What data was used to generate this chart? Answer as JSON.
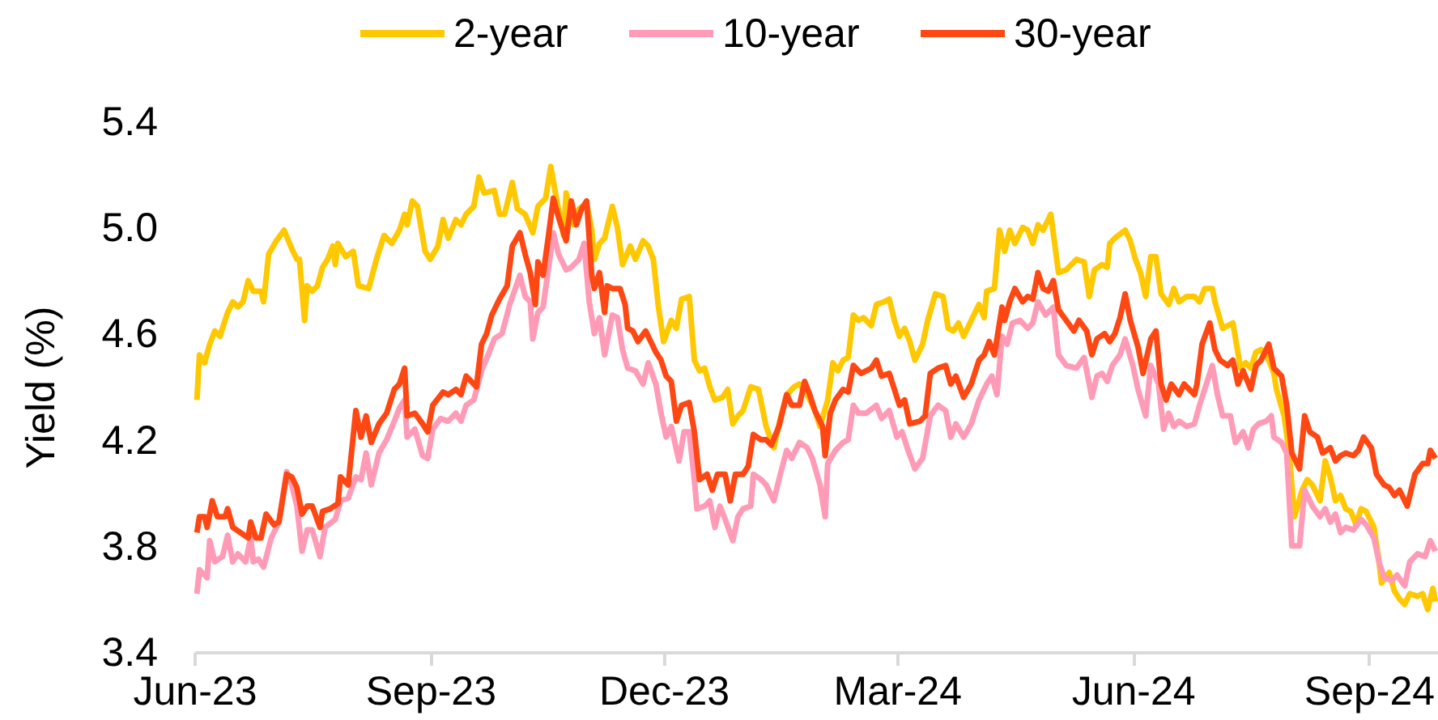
{
  "chart_data": {
    "type": "line",
    "ylabel": "Yield (%)",
    "legend": "top",
    "xlim": [
      "2023-06-01",
      "2024-09-28"
    ],
    "xticks": [
      {
        "value": "2023-06-01",
        "label": "Jun-23"
      },
      {
        "value": "2023-09-01",
        "label": "Sep-23"
      },
      {
        "value": "2023-12-01",
        "label": "Dec-23"
      },
      {
        "value": "2024-03-01",
        "label": "Mar-24"
      },
      {
        "value": "2024-06-01",
        "label": "Jun-24"
      },
      {
        "value": "2024-09-01",
        "label": "Sep-24"
      }
    ],
    "ylim": [
      3.4,
      5.4
    ],
    "yticks": [
      3.4,
      3.8,
      4.2,
      4.6,
      {
        "value": 5.0,
        "label": "5.0"
      },
      5.4
    ],
    "series": [
      {
        "name": "2-year",
        "color": "#ffc800",
        "x": [
          "2023-06-02",
          "2023-06-03",
          "2023-06-05",
          "2023-06-07",
          "2023-06-09",
          "2023-06-11",
          "2023-06-14",
          "2023-06-16",
          "2023-06-18",
          "2023-06-20",
          "2023-06-22",
          "2023-06-24",
          "2023-06-27",
          "2023-06-28",
          "2023-06-30",
          "2023-07-03",
          "2023-07-06",
          "2023-07-09",
          "2023-07-11",
          "2023-07-12",
          "2023-07-14",
          "2023-07-15",
          "2023-07-17",
          "2023-07-19",
          "2023-07-21",
          "2023-07-23",
          "2023-07-25",
          "2023-07-26",
          "2023-07-27",
          "2023-07-30",
          "2023-08-02",
          "2023-08-04",
          "2023-08-08",
          "2023-08-11",
          "2023-08-14",
          "2023-08-17",
          "2023-08-20",
          "2023-08-22",
          "2023-08-23",
          "2023-08-25",
          "2023-08-27",
          "2023-08-30",
          "2023-09-01",
          "2023-09-04",
          "2023-09-06",
          "2023-09-08",
          "2023-09-11",
          "2023-09-13",
          "2023-09-15",
          "2023-09-18",
          "2023-09-20",
          "2023-09-22",
          "2023-09-26",
          "2023-09-28",
          "2023-09-30",
          "2023-10-03",
          "2023-10-05",
          "2023-10-08",
          "2023-10-11",
          "2023-10-13",
          "2023-10-16",
          "2023-10-18",
          "2023-10-20",
          "2023-10-23",
          "2023-10-24",
          "2023-10-27",
          "2023-10-29",
          "2023-11-01",
          "2023-11-03",
          "2023-11-04",
          "2023-11-06",
          "2023-11-08",
          "2023-11-11",
          "2023-11-13",
          "2023-11-15",
          "2023-11-18",
          "2023-11-20",
          "2023-11-23",
          "2023-11-25",
          "2023-11-27",
          "2023-11-29",
          "2023-12-01",
          "2023-12-04",
          "2023-12-06",
          "2023-12-08",
          "2023-12-11",
          "2023-12-13",
          "2023-12-15",
          "2023-12-17",
          "2023-12-19",
          "2023-12-21",
          "2023-12-24",
          "2023-12-26",
          "2023-12-28",
          "2023-12-30",
          "2024-01-01",
          "2024-01-04",
          "2024-01-07",
          "2024-01-10",
          "2024-01-13",
          "2024-01-15",
          "2024-01-18",
          "2024-01-21",
          "2024-01-23",
          "2024-01-26",
          "2024-01-29",
          "2024-01-31",
          "2024-02-03",
          "2024-02-05",
          "2024-02-07",
          "2024-02-09",
          "2024-02-11",
          "2024-02-13",
          "2024-02-15",
          "2024-02-17",
          "2024-02-20",
          "2024-02-22",
          "2024-02-25",
          "2024-02-27",
          "2024-02-29",
          "2024-03-02",
          "2024-03-04",
          "2024-03-06",
          "2024-03-08",
          "2024-03-11",
          "2024-03-13",
          "2024-03-16",
          "2024-03-19",
          "2024-03-21",
          "2024-03-23",
          "2024-03-25",
          "2024-03-27",
          "2024-03-30",
          "2024-04-02",
          "2024-04-04",
          "2024-04-05",
          "2024-04-08",
          "2024-04-10",
          "2024-04-12",
          "2024-04-14",
          "2024-04-16",
          "2024-04-19",
          "2024-04-21",
          "2024-04-23",
          "2024-04-25",
          "2024-04-27",
          "2024-04-30",
          "2024-05-03",
          "2024-05-06",
          "2024-05-10",
          "2024-05-13",
          "2024-05-15",
          "2024-05-17",
          "2024-05-20",
          "2024-05-22",
          "2024-05-23",
          "2024-05-25",
          "2024-05-29",
          "2024-05-31",
          "2024-06-02",
          "2024-06-04",
          "2024-06-06",
          "2024-06-08",
          "2024-06-10",
          "2024-06-12",
          "2024-06-15",
          "2024-06-17",
          "2024-06-19",
          "2024-06-22",
          "2024-06-25",
          "2024-06-27",
          "2024-06-29",
          "2024-07-02",
          "2024-07-03",
          "2024-07-06",
          "2024-07-08",
          "2024-07-10",
          "2024-07-13",
          "2024-07-15",
          "2024-07-17",
          "2024-07-19",
          "2024-07-21",
          "2024-07-24",
          "2024-07-26",
          "2024-07-27",
          "2024-07-30",
          "2024-08-01",
          "2024-08-03",
          "2024-08-06",
          "2024-08-08",
          "2024-08-10",
          "2024-08-13",
          "2024-08-15",
          "2024-08-17",
          "2024-08-19",
          "2024-08-21",
          "2024-08-23",
          "2024-08-25",
          "2024-08-27",
          "2024-08-29",
          "2024-08-31",
          "2024-09-03",
          "2024-09-05",
          "2024-09-06",
          "2024-09-09",
          "2024-09-11",
          "2024-09-13",
          "2024-09-15",
          "2024-09-17",
          "2024-09-20",
          "2024-09-22",
          "2024-09-24",
          "2024-09-26",
          "2024-09-27"
        ],
        "values": [
          4.35,
          4.52,
          4.49,
          4.56,
          4.61,
          4.59,
          4.68,
          4.72,
          4.7,
          4.72,
          4.8,
          4.76,
          4.76,
          4.72,
          4.9,
          4.95,
          4.99,
          4.92,
          4.88,
          4.88,
          4.65,
          4.78,
          4.76,
          4.78,
          4.85,
          4.88,
          4.93,
          4.86,
          4.94,
          4.89,
          4.91,
          4.78,
          4.77,
          4.88,
          4.97,
          4.94,
          4.99,
          5.05,
          5.01,
          5.1,
          5.08,
          4.91,
          4.88,
          4.93,
          5.03,
          4.96,
          5.03,
          5.01,
          5.05,
          5.08,
          5.19,
          5.13,
          5.14,
          5.05,
          5.05,
          5.17,
          5.07,
          5.05,
          4.98,
          5.08,
          5.11,
          5.23,
          5.12,
          4.97,
          5.13,
          5.01,
          5.07,
          5.09,
          4.99,
          4.88,
          4.94,
          4.96,
          5.08,
          5.0,
          4.86,
          4.93,
          4.88,
          4.95,
          4.93,
          4.88,
          4.7,
          4.57,
          4.65,
          4.62,
          4.73,
          4.74,
          4.5,
          4.46,
          4.47,
          4.4,
          4.35,
          4.36,
          4.39,
          4.26,
          4.29,
          4.31,
          4.4,
          4.39,
          4.25,
          4.17,
          4.26,
          4.37,
          4.4,
          4.41,
          4.37,
          4.31,
          4.25,
          4.35,
          4.49,
          4.46,
          4.5,
          4.51,
          4.67,
          4.65,
          4.66,
          4.63,
          4.71,
          4.72,
          4.73,
          4.65,
          4.59,
          4.62,
          4.57,
          4.5,
          4.56,
          4.65,
          4.75,
          4.74,
          4.62,
          4.61,
          4.64,
          4.59,
          4.65,
          4.71,
          4.66,
          4.76,
          4.77,
          4.99,
          4.91,
          4.99,
          4.94,
          5.0,
          4.99,
          4.94,
          5.01,
          4.99,
          5.05,
          4.83,
          4.84,
          4.88,
          4.87,
          4.74,
          4.84,
          4.86,
          4.85,
          4.94,
          4.96,
          4.99,
          4.95,
          4.88,
          4.83,
          4.74,
          4.89,
          4.89,
          4.75,
          4.71,
          4.77,
          4.72,
          4.74,
          4.74,
          4.72,
          4.77,
          4.77,
          4.72,
          4.62,
          4.63,
          4.64,
          4.47,
          4.49,
          4.47,
          4.53,
          4.54,
          4.5,
          4.45,
          4.39,
          4.29,
          4.15,
          3.91,
          4.01,
          4.05,
          4.03,
          3.97,
          4.12,
          4.06,
          3.97,
          3.99,
          3.94,
          3.93,
          3.88,
          3.94,
          3.93,
          3.87,
          3.74,
          3.66,
          3.7,
          3.63,
          3.6,
          3.58,
          3.62,
          3.61,
          3.62,
          3.56,
          3.64,
          3.59
        ]
      },
      {
        "name": "10-year",
        "color": "#ff9bb6",
        "x": [
          "2023-06-02",
          "2023-06-03",
          "2023-06-06",
          "2023-06-07",
          "2023-06-09",
          "2023-06-12",
          "2023-06-14",
          "2023-06-16",
          "2023-06-18",
          "2023-06-21",
          "2023-06-23",
          "2023-06-24",
          "2023-06-26",
          "2023-06-28",
          "2023-07-01",
          "2023-07-04",
          "2023-07-07",
          "2023-07-09",
          "2023-07-11",
          "2023-07-13",
          "2023-07-15",
          "2023-07-17",
          "2023-07-20",
          "2023-07-22",
          "2023-07-26",
          "2023-07-28",
          "2023-07-31",
          "2023-08-03",
          "2023-08-05",
          "2023-08-07",
          "2023-08-09",
          "2023-08-12",
          "2023-08-15",
          "2023-08-18",
          "2023-08-20",
          "2023-08-22",
          "2023-08-23",
          "2023-08-26",
          "2023-08-29",
          "2023-08-31",
          "2023-09-02",
          "2023-09-05",
          "2023-09-08",
          "2023-09-11",
          "2023-09-13",
          "2023-09-15",
          "2023-09-18",
          "2023-09-21",
          "2023-09-24",
          "2023-09-26",
          "2023-09-29",
          "2023-10-02",
          "2023-10-06",
          "2023-10-08",
          "2023-10-10",
          "2023-10-11",
          "2023-10-13",
          "2023-10-15",
          "2023-10-17",
          "2023-10-19",
          "2023-10-21",
          "2023-10-24",
          "2023-10-26",
          "2023-10-29",
          "2023-10-31",
          "2023-11-02",
          "2023-11-04",
          "2023-11-06",
          "2023-11-08",
          "2023-11-11",
          "2023-11-13",
          "2023-11-15",
          "2023-11-17",
          "2023-11-20",
          "2023-11-23",
          "2023-11-25",
          "2023-11-28",
          "2023-11-30",
          "2023-12-02",
          "2023-12-04",
          "2023-12-07",
          "2023-12-09",
          "2023-12-11",
          "2023-12-13",
          "2023-12-14",
          "2023-12-17",
          "2023-12-19",
          "2023-12-21",
          "2023-12-23",
          "2023-12-25",
          "2023-12-28",
          "2023-12-30",
          "2024-01-01",
          "2024-01-04",
          "2024-01-05",
          "2024-01-08",
          "2024-01-10",
          "2024-01-13",
          "2024-01-15",
          "2024-01-18",
          "2024-01-20",
          "2024-01-23",
          "2024-01-26",
          "2024-01-28",
          "2024-01-31",
          "2024-02-02",
          "2024-02-03",
          "2024-02-06",
          "2024-02-09",
          "2024-02-11",
          "2024-02-13",
          "2024-02-15",
          "2024-02-18",
          "2024-02-22",
          "2024-02-24",
          "2024-02-27",
          "2024-03-01",
          "2024-03-03",
          "2024-03-05",
          "2024-03-08",
          "2024-03-11",
          "2024-03-14",
          "2024-03-17",
          "2024-03-20",
          "2024-03-22",
          "2024-03-24",
          "2024-03-27",
          "2024-03-30",
          "2024-04-02",
          "2024-04-05",
          "2024-04-07",
          "2024-04-09",
          "2024-04-11",
          "2024-04-13",
          "2024-04-15",
          "2024-04-18",
          "2024-04-21",
          "2024-04-23",
          "2024-04-25",
          "2024-04-28",
          "2024-05-01",
          "2024-05-03",
          "2024-05-06",
          "2024-05-10",
          "2024-05-13",
          "2024-05-16",
          "2024-05-18",
          "2024-05-20",
          "2024-05-22",
          "2024-05-24",
          "2024-05-27",
          "2024-05-29",
          "2024-06-01",
          "2024-06-03",
          "2024-06-06",
          "2024-06-08",
          "2024-06-11",
          "2024-06-13",
          "2024-06-15",
          "2024-06-17",
          "2024-06-19",
          "2024-06-22",
          "2024-06-25",
          "2024-06-27",
          "2024-06-29",
          "2024-07-02",
          "2024-07-04",
          "2024-07-06",
          "2024-07-09",
          "2024-07-11",
          "2024-07-14",
          "2024-07-16",
          "2024-07-18",
          "2024-07-20",
          "2024-07-23",
          "2024-07-25",
          "2024-07-26",
          "2024-07-29",
          "2024-07-31",
          "2024-08-02",
          "2024-08-05",
          "2024-08-07",
          "2024-08-10",
          "2024-08-13",
          "2024-08-15",
          "2024-08-17",
          "2024-08-19",
          "2024-08-21",
          "2024-08-23",
          "2024-08-26",
          "2024-08-29",
          "2024-08-31",
          "2024-09-03",
          "2024-09-05",
          "2024-09-07",
          "2024-09-10",
          "2024-09-12",
          "2024-09-15",
          "2024-09-17",
          "2024-09-20",
          "2024-09-23",
          "2024-09-25",
          "2024-09-27"
        ],
        "values": [
          3.62,
          3.71,
          3.68,
          3.82,
          3.74,
          3.76,
          3.84,
          3.74,
          3.77,
          3.74,
          3.83,
          3.74,
          3.75,
          3.72,
          3.83,
          3.89,
          4.08,
          4.03,
          3.95,
          3.78,
          3.86,
          3.86,
          3.76,
          3.87,
          3.9,
          3.97,
          3.98,
          4.06,
          4.05,
          4.15,
          4.03,
          4.15,
          4.2,
          4.27,
          4.32,
          4.35,
          4.21,
          4.24,
          4.14,
          4.13,
          4.24,
          4.28,
          4.27,
          4.3,
          4.27,
          4.33,
          4.35,
          4.46,
          4.53,
          4.58,
          4.6,
          4.71,
          4.82,
          4.74,
          4.72,
          4.58,
          4.68,
          4.7,
          4.84,
          4.98,
          4.9,
          4.84,
          4.85,
          4.88,
          4.94,
          4.72,
          4.6,
          4.66,
          4.52,
          4.67,
          4.66,
          4.54,
          4.47,
          4.46,
          4.41,
          4.49,
          4.41,
          4.3,
          4.21,
          4.25,
          4.12,
          4.23,
          4.23,
          4.05,
          3.94,
          3.95,
          3.97,
          3.87,
          3.95,
          3.9,
          3.82,
          3.91,
          3.94,
          3.95,
          4.07,
          4.05,
          4.03,
          3.97,
          4.05,
          4.16,
          4.13,
          4.19,
          4.17,
          4.13,
          4.03,
          3.91,
          4.11,
          4.16,
          4.19,
          4.2,
          4.33,
          4.3,
          4.3,
          4.33,
          4.28,
          4.31,
          4.21,
          4.23,
          4.17,
          4.09,
          4.13,
          4.29,
          4.33,
          4.31,
          4.21,
          4.26,
          4.21,
          4.26,
          4.35,
          4.41,
          4.44,
          4.37,
          4.59,
          4.56,
          4.64,
          4.65,
          4.62,
          4.64,
          4.72,
          4.67,
          4.7,
          4.52,
          4.48,
          4.47,
          4.51,
          4.36,
          4.44,
          4.45,
          4.42,
          4.48,
          4.52,
          4.58,
          4.48,
          4.39,
          4.29,
          4.48,
          4.41,
          4.24,
          4.3,
          4.25,
          4.27,
          4.25,
          4.26,
          4.33,
          4.39,
          4.48,
          4.37,
          4.29,
          4.29,
          4.19,
          4.23,
          4.17,
          4.24,
          4.26,
          4.27,
          4.29,
          4.21,
          4.19,
          4.15,
          3.8,
          3.8,
          4.01,
          3.95,
          3.91,
          3.94,
          3.89,
          3.92,
          3.85,
          3.87,
          3.86,
          3.9,
          3.88,
          3.83,
          3.74,
          3.68,
          3.67,
          3.69,
          3.65,
          3.74,
          3.77,
          3.76,
          3.82,
          3.78
        ]
      },
      {
        "name": "30-year",
        "color": "#ff4713",
        "x": [
          "2023-06-02",
          "2023-06-03",
          "2023-06-05",
          "2023-06-06",
          "2023-06-08",
          "2023-06-10",
          "2023-06-13",
          "2023-06-14",
          "2023-06-16",
          "2023-06-19",
          "2023-06-22",
          "2023-06-23",
          "2023-06-25",
          "2023-06-27",
          "2023-06-29",
          "2023-07-02",
          "2023-07-04",
          "2023-07-07",
          "2023-07-09",
          "2023-07-11",
          "2023-07-13",
          "2023-07-15",
          "2023-07-17",
          "2023-07-20",
          "2023-07-21",
          "2023-07-24",
          "2023-07-27",
          "2023-07-28",
          "2023-07-31",
          "2023-08-03",
          "2023-08-05",
          "2023-08-07",
          "2023-08-09",
          "2023-08-12",
          "2023-08-15",
          "2023-08-18",
          "2023-08-20",
          "2023-08-22",
          "2023-08-23",
          "2023-08-26",
          "2023-08-29",
          "2023-08-31",
          "2023-09-02",
          "2023-09-06",
          "2023-09-08",
          "2023-09-11",
          "2023-09-13",
          "2023-09-15",
          "2023-09-19",
          "2023-09-21",
          "2023-09-23",
          "2023-09-25",
          "2023-09-28",
          "2023-10-01",
          "2023-10-03",
          "2023-10-06",
          "2023-10-08",
          "2023-10-10",
          "2023-10-12",
          "2023-10-13",
          "2023-10-15",
          "2023-10-17",
          "2023-10-19",
          "2023-10-21",
          "2023-10-24",
          "2023-10-26",
          "2023-10-28",
          "2023-10-30",
          "2023-11-01",
          "2023-11-03",
          "2023-11-04",
          "2023-11-06",
          "2023-11-08",
          "2023-11-09",
          "2023-11-11",
          "2023-11-14",
          "2023-11-16",
          "2023-11-17",
          "2023-11-19",
          "2023-11-21",
          "2023-11-24",
          "2023-11-26",
          "2023-11-28",
          "2023-11-30",
          "2023-12-02",
          "2023-12-04",
          "2023-12-06",
          "2023-12-08",
          "2023-12-11",
          "2023-12-13",
          "2023-12-15",
          "2023-12-18",
          "2023-12-20",
          "2023-12-22",
          "2023-12-25",
          "2023-12-27",
          "2023-12-29",
          "2024-01-01",
          "2024-01-03",
          "2024-01-05",
          "2024-01-08",
          "2024-01-10",
          "2024-01-12",
          "2024-01-15",
          "2024-01-18",
          "2024-01-20",
          "2024-01-23",
          "2024-01-25",
          "2024-01-27",
          "2024-01-29",
          "2024-02-01",
          "2024-02-02",
          "2024-02-04",
          "2024-02-06",
          "2024-02-09",
          "2024-02-11",
          "2024-02-13",
          "2024-02-16",
          "2024-02-20",
          "2024-02-22",
          "2024-02-24",
          "2024-02-27",
          "2024-02-29",
          "2024-03-02",
          "2024-03-04",
          "2024-03-06",
          "2024-03-10",
          "2024-03-12",
          "2024-03-14",
          "2024-03-17",
          "2024-03-20",
          "2024-03-22",
          "2024-03-24",
          "2024-03-27",
          "2024-03-30",
          "2024-04-02",
          "2024-04-04",
          "2024-04-06",
          "2024-04-08",
          "2024-04-11",
          "2024-04-12",
          "2024-04-14",
          "2024-04-16",
          "2024-04-19",
          "2024-04-21",
          "2024-04-23",
          "2024-04-25",
          "2024-04-27",
          "2024-04-29",
          "2024-05-01",
          "2024-05-03",
          "2024-05-06",
          "2024-05-09",
          "2024-05-11",
          "2024-05-14",
          "2024-05-16",
          "2024-05-18",
          "2024-05-21",
          "2024-05-23",
          "2024-05-25",
          "2024-05-27",
          "2024-05-29",
          "2024-05-31",
          "2024-06-03",
          "2024-06-05",
          "2024-06-08",
          "2024-06-10",
          "2024-06-12",
          "2024-06-14",
          "2024-06-16",
          "2024-06-19",
          "2024-06-21",
          "2024-06-25",
          "2024-06-26",
          "2024-06-28",
          "2024-07-01",
          "2024-07-03",
          "2024-07-05",
          "2024-07-08",
          "2024-07-10",
          "2024-07-12",
          "2024-07-14",
          "2024-07-17",
          "2024-07-19",
          "2024-07-21",
          "2024-07-24",
          "2024-07-26",
          "2024-07-29",
          "2024-07-31",
          "2024-08-02",
          "2024-08-05",
          "2024-08-07",
          "2024-08-09",
          "2024-08-12",
          "2024-08-14",
          "2024-08-17",
          "2024-08-19",
          "2024-08-21",
          "2024-08-23",
          "2024-08-26",
          "2024-08-28",
          "2024-08-30",
          "2024-09-02",
          "2024-09-04",
          "2024-09-07",
          "2024-09-09",
          "2024-09-11",
          "2024-09-13",
          "2024-09-16",
          "2024-09-19",
          "2024-09-22",
          "2024-09-24",
          "2024-09-25",
          "2024-09-27"
        ],
        "values": [
          3.85,
          3.91,
          3.91,
          3.87,
          3.97,
          3.91,
          3.91,
          3.94,
          3.87,
          3.85,
          3.83,
          3.89,
          3.83,
          3.83,
          3.92,
          3.88,
          3.89,
          4.07,
          4.06,
          4.02,
          3.92,
          3.95,
          3.95,
          3.87,
          3.93,
          3.94,
          3.96,
          4.06,
          4.03,
          4.31,
          4.21,
          4.29,
          4.19,
          4.26,
          4.3,
          4.39,
          4.41,
          4.47,
          4.29,
          4.3,
          4.26,
          4.23,
          4.33,
          4.38,
          4.37,
          4.39,
          4.37,
          4.44,
          4.4,
          4.56,
          4.6,
          4.67,
          4.73,
          4.78,
          4.93,
          4.98,
          4.9,
          4.83,
          4.71,
          4.87,
          4.82,
          4.96,
          5.11,
          5.04,
          4.95,
          5.1,
          5.01,
          5.07,
          5.1,
          4.82,
          4.77,
          4.83,
          4.68,
          4.78,
          4.77,
          4.77,
          4.71,
          4.62,
          4.61,
          4.57,
          4.61,
          4.57,
          4.53,
          4.5,
          4.44,
          4.42,
          4.27,
          4.33,
          4.34,
          4.23,
          4.05,
          4.07,
          4.01,
          4.07,
          4.07,
          3.97,
          4.07,
          4.07,
          4.1,
          4.22,
          4.2,
          4.2,
          4.18,
          4.25,
          4.37,
          4.33,
          4.33,
          4.42,
          4.37,
          4.31,
          4.25,
          4.14,
          4.3,
          4.35,
          4.39,
          4.38,
          4.48,
          4.45,
          4.47,
          4.5,
          4.44,
          4.45,
          4.39,
          4.33,
          4.35,
          4.26,
          4.27,
          4.29,
          4.45,
          4.47,
          4.48,
          4.41,
          4.44,
          4.36,
          4.41,
          4.5,
          4.52,
          4.57,
          4.52,
          4.7,
          4.65,
          4.72,
          4.77,
          4.72,
          4.74,
          4.73,
          4.83,
          4.77,
          4.76,
          4.8,
          4.69,
          4.65,
          4.61,
          4.65,
          4.61,
          4.52,
          4.58,
          4.6,
          4.57,
          4.6,
          4.66,
          4.75,
          4.65,
          4.55,
          4.45,
          4.58,
          4.61,
          4.41,
          4.35,
          4.41,
          4.37,
          4.41,
          4.37,
          4.41,
          4.56,
          4.64,
          4.54,
          4.5,
          4.48,
          4.5,
          4.41,
          4.46,
          4.39,
          4.48,
          4.5,
          4.56,
          4.47,
          4.44,
          4.33,
          4.15,
          4.09,
          4.29,
          4.23,
          4.21,
          4.15,
          4.17,
          4.12,
          4.14,
          4.15,
          4.14,
          4.16,
          4.21,
          4.17,
          4.07,
          4.03,
          4.02,
          3.99,
          4.01,
          3.95,
          4.07,
          4.11,
          4.11,
          4.16,
          4.13
        ]
      }
    ]
  }
}
